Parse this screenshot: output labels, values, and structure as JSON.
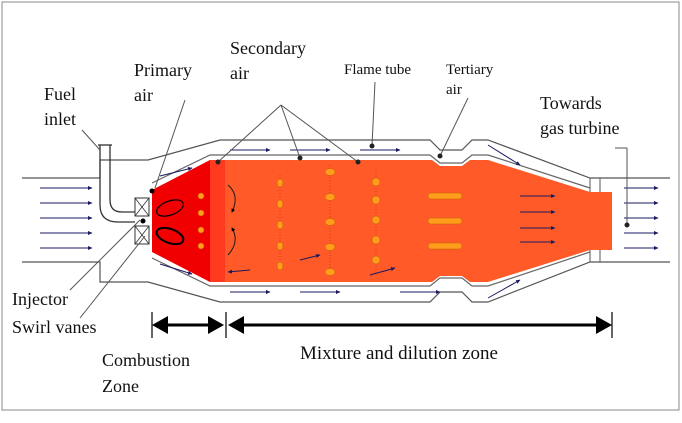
{
  "labels": {
    "fuel_inlet_1": "Fuel",
    "fuel_inlet_2": "inlet",
    "primary_air_1": "Primary",
    "primary_air_2": "air",
    "secondary_air_1": "Secondary",
    "secondary_air_2": "air",
    "flame_tube": "Flame tube",
    "tertiary_air_1": "Tertiary",
    "tertiary_air_2": "air",
    "towards_turbine_1": "Towards",
    "towards_turbine_2": "gas turbine",
    "injector": "Injector",
    "swirl_vanes": "Swirl vanes",
    "combustion_zone_1": "Combustion",
    "combustion_zone_2": "Zone",
    "mixture_zone": "Mixture and dilution zone"
  },
  "colors": {
    "primary_flame": "#f00000",
    "main_flame": "#ff5a28",
    "droplet": "#ff9c1c",
    "casing": "#555555",
    "arrow": "#1a1a60"
  }
}
